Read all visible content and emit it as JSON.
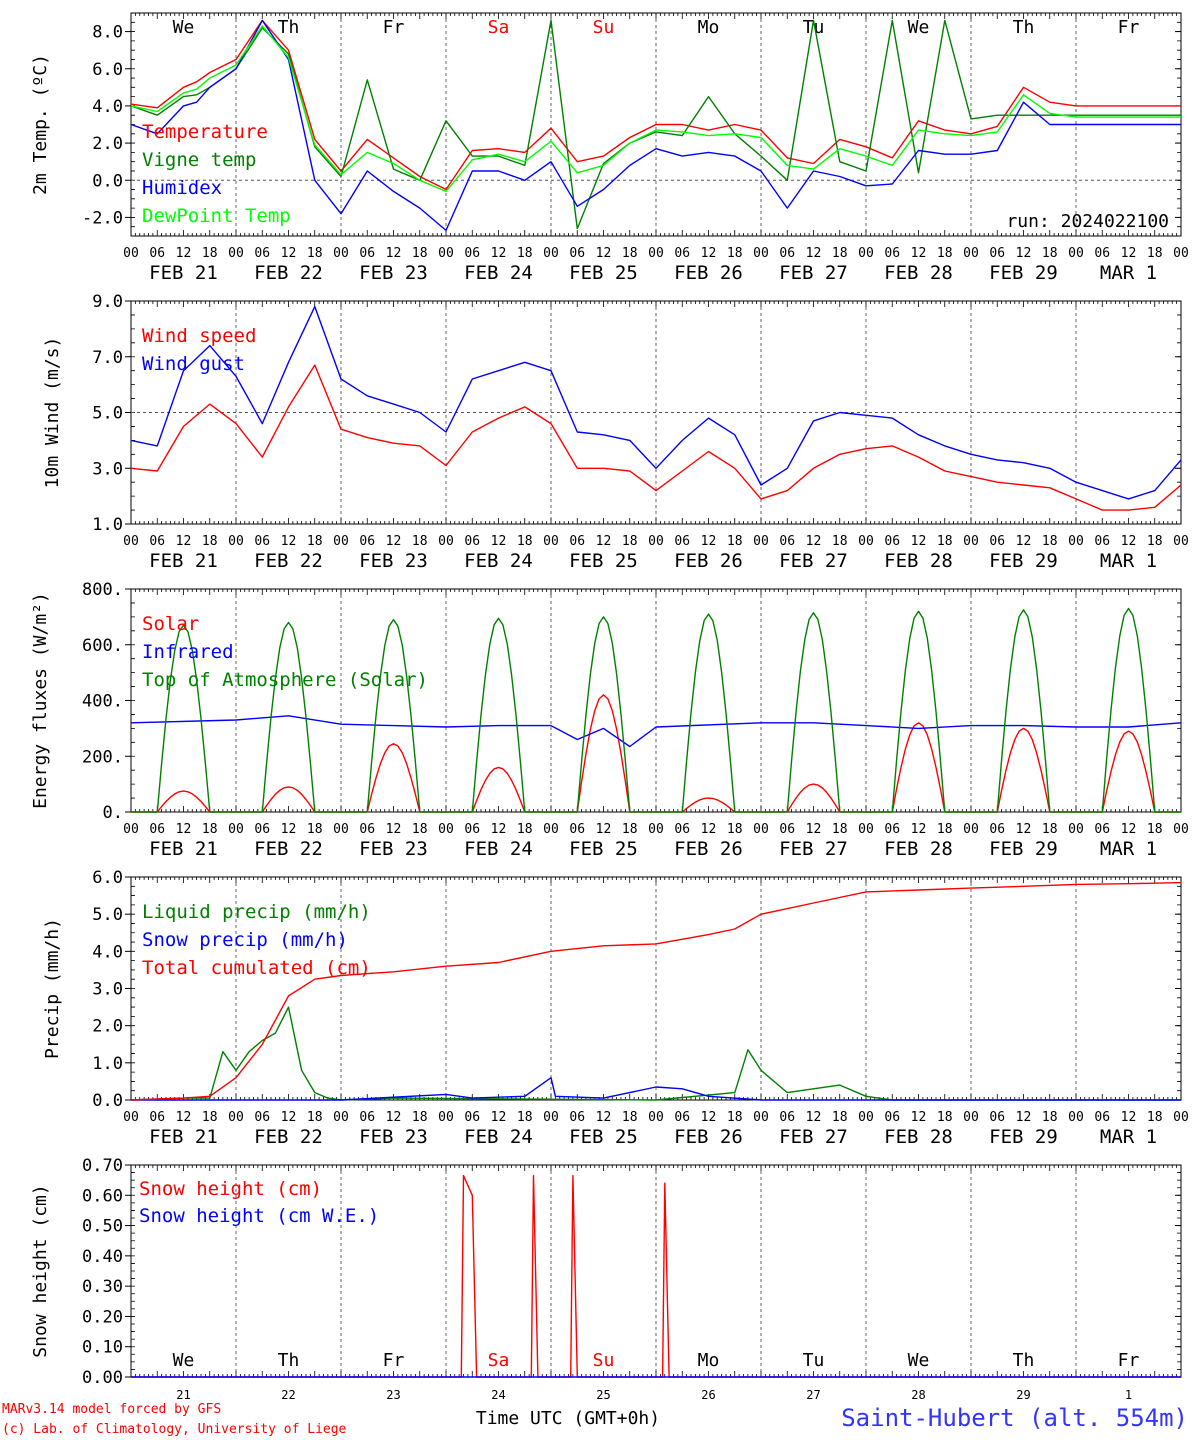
{
  "chart_data": [
    {
      "type": "line",
      "ylabel": "2m Temp. (ºC)",
      "ylim": [
        -3.0,
        9.0
      ],
      "yticks": [
        "8.0",
        "6.0",
        "4.0",
        "2.0",
        "0.0",
        "-2.0"
      ],
      "ytick_values": [
        8,
        6,
        4,
        2,
        0,
        -2
      ],
      "x_hours": [
        0,
        6,
        12,
        15,
        18,
        24,
        30,
        36,
        42,
        48,
        54,
        60,
        66,
        72,
        78,
        84,
        90,
        96,
        102,
        108,
        114,
        120,
        126,
        132,
        138,
        144,
        150,
        156,
        162,
        168,
        174,
        180,
        186,
        192,
        198,
        204,
        210,
        216,
        222,
        228,
        234,
        240
      ],
      "reference_line": 0,
      "day_names": [
        {
          "label": "We",
          "color": "#000000"
        },
        {
          "label": "Th",
          "color": "#000000"
        },
        {
          "label": "Fr",
          "color": "#000000"
        },
        {
          "label": "Sa",
          "color": "#ff0000"
        },
        {
          "label": "Su",
          "color": "#ff0000"
        },
        {
          "label": "Mo",
          "color": "#000000"
        },
        {
          "label": "Tu",
          "color": "#000000"
        },
        {
          "label": "We",
          "color": "#000000"
        },
        {
          "label": "Th",
          "color": "#000000"
        },
        {
          "label": "Fr",
          "color": "#000000"
        }
      ],
      "annotation": "run: 2024022100",
      "series": [
        {
          "name": "Temperature",
          "color": "#ff0000",
          "values": [
            4.1,
            3.9,
            5.0,
            5.3,
            5.8,
            6.5,
            8.6,
            7.0,
            2.2,
            0.5,
            2.2,
            1.2,
            0.2,
            -0.5,
            1.6,
            1.7,
            1.5,
            2.8,
            1.0,
            1.3,
            2.3,
            3.0,
            3.0,
            2.7,
            3.0,
            2.7,
            1.2,
            0.9,
            2.2,
            1.8,
            1.2,
            3.2,
            2.7,
            2.5,
            2.9,
            5.0,
            4.2,
            4.0,
            4.0,
            4.0,
            4.0,
            4.0
          ]
        },
        {
          "name": "Vigne temp",
          "color": "#008000",
          "values": [
            4.0,
            3.5,
            4.5,
            4.6,
            5.0,
            6.0,
            8.2,
            6.8,
            1.8,
            0.2,
            5.4,
            0.6,
            0.0,
            3.2,
            1.3,
            1.3,
            0.8,
            8.6,
            -2.6,
            0.9,
            2.0,
            2.6,
            2.4,
            4.5,
            2.5,
            1.3,
            0.0,
            8.6,
            1.0,
            0.5,
            8.6,
            0.4,
            8.6,
            3.3,
            3.5,
            3.5,
            3.5,
            3.5,
            3.5,
            3.5,
            3.5,
            3.5
          ]
        },
        {
          "name": "Humidex",
          "color": "#0000ff",
          "values": [
            3.0,
            2.5,
            4.0,
            4.2,
            5.0,
            6.0,
            8.6,
            6.5,
            0.0,
            -1.8,
            0.5,
            -0.6,
            -1.5,
            -2.7,
            0.5,
            0.5,
            0.0,
            1.0,
            -1.4,
            -0.5,
            0.8,
            1.7,
            1.3,
            1.5,
            1.3,
            0.5,
            -1.5,
            0.5,
            0.2,
            -0.3,
            -0.2,
            1.6,
            1.4,
            1.4,
            1.6,
            4.2,
            3.0,
            3.0,
            3.0,
            3.0,
            3.0,
            3.0
          ]
        },
        {
          "name": "DewPoint Temp",
          "color": "#00ff00",
          "values": [
            4.0,
            3.7,
            4.7,
            4.9,
            5.5,
            6.2,
            8.3,
            6.6,
            1.9,
            0.3,
            1.5,
            0.9,
            0.0,
            -0.6,
            1.1,
            1.4,
            1.0,
            2.1,
            0.4,
            0.8,
            2.0,
            2.7,
            2.6,
            2.4,
            2.5,
            2.3,
            0.8,
            0.6,
            1.7,
            1.3,
            0.8,
            2.7,
            2.5,
            2.4,
            2.6,
            4.6,
            3.6,
            3.4,
            3.4,
            3.4,
            3.4,
            3.4
          ]
        }
      ]
    },
    {
      "type": "line",
      "ylabel": "10m Wind (m/s)",
      "ylim": [
        1.0,
        9.0
      ],
      "yticks": [
        "9.0",
        "7.0",
        "5.0",
        "3.0",
        "1.0"
      ],
      "ytick_values": [
        9,
        7,
        5,
        3,
        1
      ],
      "x_hours": [
        0,
        6,
        12,
        18,
        24,
        30,
        36,
        42,
        48,
        54,
        60,
        66,
        72,
        78,
        84,
        90,
        96,
        102,
        108,
        114,
        120,
        126,
        132,
        138,
        144,
        150,
        156,
        162,
        168,
        174,
        180,
        186,
        192,
        198,
        204,
        210,
        216,
        222,
        228,
        234,
        240
      ],
      "reference_line": 5,
      "series": [
        {
          "name": "Wind speed",
          "color": "#ff0000",
          "values": [
            3.0,
            2.9,
            4.5,
            5.3,
            4.6,
            3.4,
            5.2,
            6.7,
            4.4,
            4.1,
            3.9,
            3.8,
            3.1,
            4.3,
            4.8,
            5.2,
            4.6,
            3.0,
            3.0,
            2.9,
            2.2,
            2.9,
            3.6,
            3.0,
            1.9,
            2.2,
            3.0,
            3.5,
            3.7,
            3.8,
            3.4,
            2.9,
            2.7,
            2.5,
            2.4,
            2.3,
            1.9,
            1.5,
            1.5,
            1.6,
            2.4
          ]
        },
        {
          "name": "Wind gust",
          "color": "#0000ff",
          "values": [
            4.0,
            3.8,
            6.5,
            7.4,
            6.3,
            4.6,
            6.8,
            8.8,
            6.2,
            5.6,
            5.3,
            5.0,
            4.3,
            6.2,
            6.5,
            6.8,
            6.5,
            4.3,
            4.2,
            4.0,
            3.0,
            4.0,
            4.8,
            4.2,
            2.4,
            3.0,
            4.7,
            5.0,
            4.9,
            4.8,
            4.2,
            3.8,
            3.5,
            3.3,
            3.2,
            3.0,
            2.5,
            2.2,
            1.9,
            2.2,
            3.3
          ]
        }
      ]
    },
    {
      "type": "line",
      "ylabel": "Energy fluxes (W/m²)",
      "ylim": [
        0,
        800
      ],
      "yticks": [
        "800.",
        "600.",
        "400.",
        "200.",
        "0."
      ],
      "ytick_values": [
        800,
        600,
        400,
        200,
        0
      ],
      "series": [
        {
          "name": "Solar",
          "color": "#ff0000",
          "days": [
            [
              0,
              75
            ],
            [
              1,
              90
            ],
            [
              2,
              245
            ],
            [
              3,
              160
            ],
            [
              4,
              420
            ],
            [
              5,
              50
            ],
            [
              6,
              100
            ],
            [
              7,
              320
            ],
            [
              8,
              300
            ],
            [
              9,
              290
            ]
          ]
        },
        {
          "name": "Infrared",
          "color": "#0000ff",
          "x": [
            0,
            24,
            36,
            48,
            60,
            72,
            84,
            96,
            102,
            108,
            114,
            120,
            144,
            156,
            168,
            180,
            192,
            204,
            216,
            228,
            240
          ],
          "values": [
            320,
            330,
            345,
            315,
            310,
            305,
            310,
            310,
            260,
            300,
            235,
            305,
            320,
            320,
            310,
            300,
            310,
            310,
            305,
            305,
            320
          ]
        },
        {
          "name": "Top of Atmosphere (Solar)",
          "color": "#008000",
          "days": [
            [
              0,
              670
            ],
            [
              1,
              680
            ],
            [
              2,
              690
            ],
            [
              3,
              695
            ],
            [
              4,
              700
            ],
            [
              5,
              710
            ],
            [
              6,
              715
            ],
            [
              7,
              720
            ],
            [
              8,
              725
            ],
            [
              9,
              730
            ]
          ]
        }
      ]
    },
    {
      "type": "line",
      "ylabel": "Precip (mm/h)",
      "ylim": [
        0,
        6.0
      ],
      "yticks": [
        "6.0",
        "5.0",
        "4.0",
        "3.0",
        "2.0",
        "1.0",
        "0.0"
      ],
      "ytick_values": [
        6,
        5,
        4,
        3,
        2,
        1,
        0
      ],
      "series": [
        {
          "name": "Liquid precip (mm/h)",
          "color": "#008000",
          "x": [
            0,
            12,
            18,
            21,
            24,
            27,
            30,
            33,
            36,
            39,
            42,
            45,
            48,
            60,
            120,
            138,
            141,
            144,
            150,
            156,
            162,
            168,
            174,
            180,
            240
          ],
          "values": [
            0,
            0.05,
            0.05,
            1.3,
            0.8,
            1.3,
            1.6,
            1.8,
            2.5,
            0.8,
            0.2,
            0.05,
            0,
            0.05,
            0,
            0.2,
            1.35,
            0.8,
            0.2,
            0.3,
            0.4,
            0.1,
            0,
            0,
            0
          ]
        },
        {
          "name": "Snow precip (mm/h)",
          "color": "#0000ff",
          "x": [
            0,
            48,
            72,
            78,
            90,
            96,
            97,
            108,
            120,
            126,
            132,
            144,
            150,
            180,
            240
          ],
          "values": [
            0,
            0,
            0.15,
            0.05,
            0.1,
            0.6,
            0.1,
            0.05,
            0.35,
            0.3,
            0.1,
            0,
            0,
            0,
            0
          ]
        },
        {
          "name": "Total cumulated (cm)",
          "color": "#ff0000",
          "x": [
            0,
            12,
            18,
            24,
            30,
            36,
            42,
            48,
            60,
            72,
            84,
            96,
            108,
            120,
            132,
            138,
            144,
            156,
            168,
            180,
            192,
            204,
            216,
            228,
            240
          ],
          "values": [
            0,
            0.05,
            0.1,
            0.6,
            1.5,
            2.8,
            3.25,
            3.35,
            3.45,
            3.6,
            3.7,
            4.0,
            4.15,
            4.2,
            4.45,
            4.6,
            5.0,
            5.3,
            5.6,
            5.65,
            5.7,
            5.75,
            5.8,
            5.82,
            5.85
          ]
        }
      ]
    },
    {
      "type": "line",
      "ylabel": "Snow height (cm)",
      "ylim": [
        0,
        0.7
      ],
      "yticks": [
        "0.70",
        "0.60",
        "0.50",
        "0.40",
        "0.30",
        "0.20",
        "0.10",
        "0.00"
      ],
      "ytick_values": [
        0.7,
        0.6,
        0.5,
        0.4,
        0.3,
        0.2,
        0.1,
        0.0
      ],
      "day_names_bottom": [
        {
          "label": "We",
          "color": "#000000"
        },
        {
          "label": "Th",
          "color": "#000000"
        },
        {
          "label": "Fr",
          "color": "#000000"
        },
        {
          "label": "Sa",
          "color": "#ff0000"
        },
        {
          "label": "Su",
          "color": "#ff0000"
        },
        {
          "label": "Mo",
          "color": "#000000"
        },
        {
          "label": "Tu",
          "color": "#000000"
        },
        {
          "label": "We",
          "color": "#000000"
        },
        {
          "label": "Th",
          "color": "#000000"
        },
        {
          "label": "Fr",
          "color": "#000000"
        }
      ],
      "day_numbers": [
        "21",
        "22",
        "23",
        "24",
        "25",
        "26",
        "27",
        "28",
        "29",
        "1"
      ],
      "series": [
        {
          "name": "Snow height (cm)",
          "color": "#ff0000",
          "x": [
            0,
            75.5,
            76,
            78,
            79,
            91.5,
            92,
            93,
            100.5,
            101,
            102,
            121.5,
            122,
            123,
            240
          ],
          "values": [
            0,
            0,
            0.665,
            0.6,
            0,
            0,
            0.665,
            0,
            0,
            0.665,
            0,
            0,
            0.64,
            0,
            0
          ]
        },
        {
          "name": "Snow height (cm W.E.)",
          "color": "#0000ff",
          "x": [
            0,
            240
          ],
          "values": [
            0,
            0
          ]
        }
      ]
    }
  ],
  "x_axis": {
    "hour_ticks": [
      "00",
      "06",
      "12",
      "18"
    ],
    "date_labels": [
      "FEB 21",
      "FEB 22",
      "FEB 23",
      "FEB 24",
      "FEB 25",
      "FEB 26",
      "FEB 27",
      "FEB 28",
      "FEB 29",
      "MAR  1"
    ],
    "final_label": "00",
    "title": "Time UTC (GMT+0h)"
  },
  "footer": {
    "credit_line1": "MARv3.14 model forced by GFS",
    "credit_line2": "(c) Lab. of Climatology, University of Liege",
    "station": "Saint-Hubert (alt. 554m)",
    "credit_color": "#ff0000",
    "station_color": "#3333ff"
  }
}
